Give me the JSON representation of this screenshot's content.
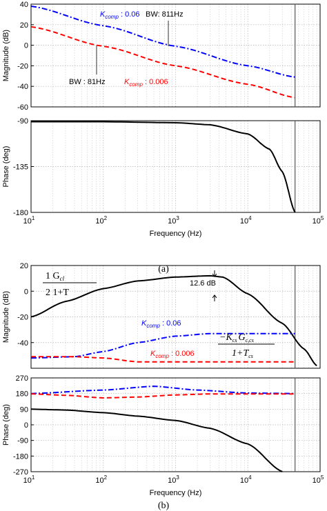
{
  "figure": {
    "caption_a": "(a)",
    "caption_b": "(b)"
  },
  "chart_data": [
    {
      "type": "line",
      "panel": "a-magnitude",
      "xscale": "log",
      "xlim": [
        10,
        100000
      ],
      "ylim": [
        -60,
        40
      ],
      "xticks": [
        10,
        100,
        1000,
        10000,
        100000
      ],
      "xtick_labels": [
        "",
        "",
        "",
        "",
        ""
      ],
      "yticks": [
        -60,
        -40,
        -20,
        0,
        20,
        40
      ],
      "ytick_labels": [
        "-60",
        "-40",
        "-20",
        "0",
        "20",
        "40"
      ],
      "ylabel": "Magnitude (dB)",
      "xlabel": "",
      "grid": true,
      "vline_x": 45000,
      "series": [
        {
          "label_sym": "K",
          "label_sub": "comp",
          "label_val": " : 0.06",
          "color": "#0000ff",
          "style": "dashdot",
          "x": [
            10,
            100,
            1000,
            10000,
            45000
          ],
          "y": [
            38,
            19,
            -1,
            -20,
            -31
          ]
        },
        {
          "label_sym": "K",
          "label_sub": "comp",
          "label_val": " : 0.006",
          "color": "#ff0000",
          "style": "dashed",
          "x": [
            10,
            100,
            1000,
            10000,
            45000
          ],
          "y": [
            18,
            -1,
            -20,
            -38,
            -51
          ]
        }
      ],
      "annotations": [
        {
          "text": "BW: 811Hz",
          "x": 811,
          "y": 0
        },
        {
          "text": "BW : 81Hz",
          "x": 81,
          "y": 0
        }
      ]
    },
    {
      "type": "line",
      "panel": "a-phase",
      "xscale": "log",
      "xlim": [
        10,
        100000
      ],
      "ylim": [
        -180,
        -90
      ],
      "xticks": [
        10,
        100,
        1000,
        10000,
        100000
      ],
      "xtick_base": "10",
      "xtick_exps": [
        "1",
        "2",
        "3",
        "4",
        "5"
      ],
      "yticks": [
        -180,
        -135,
        -90
      ],
      "ytick_labels": [
        "-180",
        "-135",
        "-90"
      ],
      "ylabel": "Phase (deg)",
      "xlabel": "Frequency  (Hz)",
      "grid": true,
      "vline_x": 45000,
      "series": [
        {
          "color": "#000000",
          "style": "solid",
          "x": [
            10,
            100,
            1000,
            3000,
            10000,
            20000,
            30000,
            45000
          ],
          "y": [
            -91,
            -91,
            -92,
            -94,
            -103,
            -118,
            -140,
            -180
          ]
        }
      ]
    },
    {
      "type": "line",
      "panel": "b-magnitude",
      "xscale": "log",
      "xlim": [
        10,
        100000
      ],
      "ylim": [
        -60,
        20
      ],
      "xticks": [
        10,
        100,
        1000,
        10000,
        100000
      ],
      "xtick_labels": [
        "",
        "",
        "",
        "",
        ""
      ],
      "yticks": [
        -60,
        -40,
        -20,
        0,
        20
      ],
      "ytick_labels": [
        "",
        "-40",
        "-20",
        "0",
        "20"
      ],
      "ylabel": "Magnitude (dB)",
      "xlabel": "",
      "grid": true,
      "vline_x": 45000,
      "series": [
        {
          "color": "#000000",
          "style": "solid",
          "x": [
            10,
            30,
            100,
            300,
            1000,
            3000,
            4500,
            10000,
            30000,
            60000,
            90000
          ],
          "y": [
            -20,
            -8,
            2,
            8,
            11,
            12,
            11,
            -2,
            -25,
            -45,
            -58
          ]
        },
        {
          "label_sym": "K",
          "label_sub": "comp",
          "label_val": " : 0.06",
          "color": "#0000ff",
          "style": "dashdot",
          "x": [
            10,
            40,
            100,
            300,
            1000,
            3000,
            10000,
            45000
          ],
          "y": [
            -52,
            -51,
            -47,
            -40,
            -35,
            -33,
            -33,
            -33
          ]
        },
        {
          "label_sym": "K",
          "label_sub": "comp",
          "label_val": " : 0.006",
          "color": "#ff0000",
          "style": "dashed",
          "x": [
            10,
            40,
            100,
            300,
            1000,
            3000,
            10000,
            45000
          ],
          "y": [
            -51,
            -51,
            -52,
            -55,
            -55,
            -55,
            -55,
            -55
          ]
        }
      ],
      "annotations": [
        {
          "text": "12.6 dB",
          "x": 3500,
          "y": 5
        }
      ],
      "formulas": {
        "f1_num": "1  G",
        "f1_num_sub": "cl",
        "f1_den": "2 1+T",
        "f2_num": "−K",
        "f2_num_sub": "cs",
        "f2_num_mid": "G",
        "f2_num_sub2": "c,cs",
        "f2_den": "1+T",
        "f2_den_sub": "cs"
      }
    },
    {
      "type": "line",
      "panel": "b-phase",
      "xscale": "log",
      "xlim": [
        10,
        100000
      ],
      "ylim": [
        -270,
        270
      ],
      "xticks": [
        10,
        100,
        1000,
        10000,
        100000
      ],
      "xtick_base": "10",
      "xtick_exps": [
        "1",
        "2",
        "3",
        "4",
        "5"
      ],
      "yticks": [
        -270,
        -180,
        -90,
        0,
        90,
        180,
        270
      ],
      "ytick_labels": [
        "-270",
        "-180",
        "-90",
        "0",
        "90",
        "180",
        "270"
      ],
      "ylabel": "Phase (deg)",
      "xlabel": "Frequency  (Hz)",
      "grid": true,
      "vline_x": 45000,
      "series": [
        {
          "color": "#0000ff",
          "style": "dashdot",
          "x": [
            10,
            100,
            500,
            2000,
            10000,
            45000
          ],
          "y": [
            180,
            200,
            222,
            200,
            183,
            180
          ]
        },
        {
          "color": "#ff0000",
          "style": "dashed",
          "x": [
            10,
            30,
            100,
            300,
            1000,
            3000,
            10000,
            45000
          ],
          "y": [
            178,
            170,
            155,
            160,
            172,
            178,
            178,
            178
          ]
        },
        {
          "color": "#000000",
          "style": "solid",
          "x": [
            10,
            30,
            100,
            300,
            1000,
            3000,
            10000,
            30000
          ],
          "y": [
            90,
            85,
            70,
            50,
            25,
            -20,
            -110,
            -270
          ]
        }
      ]
    }
  ]
}
